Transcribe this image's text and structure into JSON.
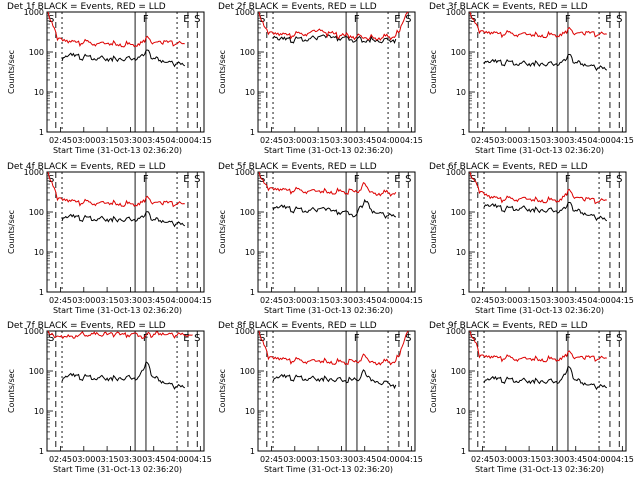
{
  "figure": {
    "ylabel": "Counts/sec",
    "xlabel": "Start Time (31-Oct-13 02:36:20)",
    "xticks": [
      "02:45",
      "03:00",
      "03:15",
      "03:30",
      "03:45",
      "04:00",
      "04:15"
    ],
    "yticks": [
      "1",
      "10",
      "100",
      "1000"
    ],
    "event_markers": [
      "S",
      "F",
      "E",
      "S"
    ],
    "colors": {
      "events": "#000000",
      "lld": "#dd0000"
    }
  },
  "chart_data": [
    {
      "type": "line",
      "title": "Det 1f  BLACK = Events, RED = LLD",
      "xlabel": "Start Time (31-Oct-13 02:36:20)",
      "ylabel": "Counts/sec",
      "yscale": "log",
      "ylim": [
        1,
        1000
      ],
      "series": [
        {
          "name": "Events",
          "color": "#000000",
          "x": [
            "02:46",
            "02:50",
            "03:00",
            "03:10",
            "03:20",
            "03:30",
            "03:35",
            "03:40",
            "03:45",
            "03:50",
            "04:00",
            "04:05"
          ],
          "values": [
            60,
            80,
            75,
            70,
            72,
            68,
            75,
            110,
            70,
            55,
            50,
            45
          ]
        },
        {
          "name": "LLD",
          "color": "#dd0000",
          "x": [
            "02:37",
            "02:41",
            "02:43",
            "02:50",
            "03:00",
            "03:10",
            "03:20",
            "03:30",
            "03:35",
            "03:40",
            "03:45",
            "03:50",
            "04:00",
            "04:05"
          ],
          "values": [
            1000,
            400,
            200,
            170,
            175,
            165,
            170,
            155,
            160,
            230,
            170,
            165,
            160,
            160
          ]
        }
      ]
    },
    {
      "type": "line",
      "title": "Det 2f  BLACK = Events, RED = LLD",
      "xlabel": "Start Time (31-Oct-13 02:36:20)",
      "ylabel": "Counts/sec",
      "yscale": "log",
      "ylim": [
        1,
        1000
      ],
      "series": [
        {
          "name": "Events",
          "color": "#000000",
          "x": [
            "02:46",
            "02:50",
            "03:00",
            "03:10",
            "03:15",
            "03:20",
            "03:30",
            "03:40",
            "03:50",
            "04:00",
            "04:05"
          ],
          "values": [
            220,
            200,
            205,
            215,
            240,
            230,
            215,
            210,
            205,
            200,
            210
          ]
        },
        {
          "name": "LLD",
          "color": "#dd0000",
          "x": [
            "02:37",
            "02:41",
            "02:43",
            "02:50",
            "03:00",
            "03:10",
            "03:15",
            "03:20",
            "03:30",
            "03:40",
            "03:50",
            "04:00",
            "04:05",
            "04:10",
            "04:13"
          ],
          "values": [
            1000,
            400,
            280,
            260,
            270,
            310,
            350,
            300,
            260,
            250,
            240,
            240,
            260,
            600,
            1000
          ]
        }
      ]
    },
    {
      "type": "line",
      "title": "Det 3f  BLACK = Events, RED = LLD",
      "xlabel": "Start Time (31-Oct-13 02:36:20)",
      "ylabel": "Counts/sec",
      "yscale": "log",
      "ylim": [
        1,
        1000
      ],
      "series": [
        {
          "name": "Events",
          "color": "#000000",
          "x": [
            "02:46",
            "02:50",
            "03:00",
            "03:10",
            "03:20",
            "03:30",
            "03:35",
            "03:40",
            "03:45",
            "03:50",
            "04:00",
            "04:05"
          ],
          "values": [
            50,
            55,
            55,
            52,
            55,
            50,
            55,
            85,
            55,
            45,
            40,
            35
          ]
        },
        {
          "name": "LLD",
          "color": "#dd0000",
          "x": [
            "02:37",
            "02:41",
            "02:43",
            "02:50",
            "03:00",
            "03:10",
            "03:20",
            "03:30",
            "03:35",
            "03:40",
            "03:45",
            "03:50",
            "04:00",
            "04:05"
          ],
          "values": [
            1000,
            500,
            300,
            280,
            290,
            285,
            280,
            270,
            280,
            380,
            290,
            280,
            270,
            280
          ]
        }
      ]
    },
    {
      "type": "line",
      "title": "Det 4f  BLACK = Events, RED = LLD",
      "xlabel": "Start Time (31-Oct-13 02:36:20)",
      "ylabel": "Counts/sec",
      "yscale": "log",
      "ylim": [
        1,
        1000
      ],
      "series": [
        {
          "name": "Events",
          "color": "#000000",
          "x": [
            "02:46",
            "02:50",
            "03:00",
            "03:10",
            "03:20",
            "03:30",
            "03:35",
            "03:40",
            "03:45",
            "03:50",
            "04:00",
            "04:05"
          ],
          "values": [
            60,
            75,
            70,
            68,
            70,
            65,
            70,
            100,
            65,
            55,
            50,
            45
          ]
        },
        {
          "name": "LLD",
          "color": "#dd0000",
          "x": [
            "02:37",
            "02:41",
            "02:43",
            "02:50",
            "03:00",
            "03:10",
            "03:20",
            "03:30",
            "03:35",
            "03:40",
            "03:45",
            "03:50",
            "04:00",
            "04:05"
          ],
          "values": [
            1000,
            400,
            200,
            180,
            175,
            170,
            175,
            160,
            165,
            230,
            170,
            160,
            155,
            160
          ]
        }
      ]
    },
    {
      "type": "line",
      "title": "Det 5f  BLACK = Events, RED = LLD",
      "xlabel": "Start Time (31-Oct-13 02:36:20)",
      "ylabel": "Counts/sec",
      "yscale": "log",
      "ylim": [
        1,
        1000
      ],
      "series": [
        {
          "name": "Events",
          "color": "#000000",
          "x": [
            "02:46",
            "02:50",
            "03:00",
            "03:10",
            "03:15",
            "03:20",
            "03:30",
            "03:40",
            "03:45",
            "03:50",
            "04:00",
            "04:05"
          ],
          "values": [
            110,
            130,
            115,
            110,
            120,
            110,
            95,
            90,
            200,
            95,
            80,
            75
          ]
        },
        {
          "name": "LLD",
          "color": "#dd0000",
          "x": [
            "02:37",
            "02:41",
            "02:43",
            "02:50",
            "03:00",
            "03:10",
            "03:20",
            "03:30",
            "03:40",
            "03:45",
            "03:50",
            "04:00",
            "04:05"
          ],
          "values": [
            1000,
            500,
            350,
            340,
            350,
            340,
            345,
            330,
            310,
            520,
            320,
            300,
            310
          ]
        }
      ]
    },
    {
      "type": "line",
      "title": "Det 6f  BLACK = Events, RED = LLD",
      "xlabel": "Start Time (31-Oct-13 02:36:20)",
      "ylabel": "Counts/sec",
      "yscale": "log",
      "ylim": [
        1,
        1000
      ],
      "series": [
        {
          "name": "Events",
          "color": "#000000",
          "x": [
            "02:46",
            "02:50",
            "03:00",
            "03:10",
            "03:20",
            "03:30",
            "03:35",
            "03:40",
            "03:45",
            "03:50",
            "04:00",
            "04:05"
          ],
          "values": [
            130,
            140,
            120,
            125,
            120,
            110,
            110,
            170,
            110,
            85,
            70,
            60
          ]
        },
        {
          "name": "LLD",
          "color": "#dd0000",
          "x": [
            "02:37",
            "02:40",
            "02:43",
            "02:50",
            "03:00",
            "03:10",
            "03:20",
            "03:30",
            "03:35",
            "03:40",
            "03:45",
            "03:50",
            "04:00",
            "04:05"
          ],
          "values": [
            1000,
            600,
            300,
            220,
            210,
            220,
            210,
            200,
            210,
            350,
            230,
            200,
            180,
            200
          ]
        }
      ]
    },
    {
      "type": "line",
      "title": "Det 7f  BLACK = Events, RED = LLD",
      "xlabel": "Start Time (31-Oct-13 02:36:20)",
      "ylabel": "Counts/sec",
      "yscale": "log",
      "ylim": [
        1,
        1000
      ],
      "series": [
        {
          "name": "Events",
          "color": "#000000",
          "x": [
            "02:46",
            "02:50",
            "03:00",
            "03:10",
            "03:20",
            "03:30",
            "03:35",
            "03:40",
            "03:45",
            "03:50",
            "04:00",
            "04:05"
          ],
          "values": [
            55,
            75,
            70,
            68,
            70,
            68,
            70,
            170,
            70,
            50,
            40,
            38
          ]
        },
        {
          "name": "LLD",
          "color": "#dd0000",
          "x": [
            "02:37",
            "02:43",
            "02:50",
            "03:00",
            "03:10",
            "03:20",
            "03:30",
            "03:40",
            "03:45",
            "03:50",
            "04:00",
            "04:10"
          ],
          "values": [
            1000,
            750,
            800,
            820,
            780,
            800,
            790,
            780,
            830,
            790,
            780,
            800
          ]
        }
      ]
    },
    {
      "type": "line",
      "title": "Det 8f  BLACK = Events, RED = LLD",
      "xlabel": "Start Time (31-Oct-13 02:36:20)",
      "ylabel": "Counts/sec",
      "yscale": "log",
      "ylim": [
        1,
        1000
      ],
      "series": [
        {
          "name": "Events",
          "color": "#000000",
          "x": [
            "02:46",
            "02:50",
            "03:00",
            "03:10",
            "03:20",
            "03:30",
            "03:40",
            "03:45",
            "03:50",
            "04:00",
            "04:05"
          ],
          "values": [
            55,
            70,
            68,
            65,
            68,
            60,
            58,
            100,
            60,
            50,
            45
          ]
        },
        {
          "name": "LLD",
          "color": "#dd0000",
          "x": [
            "02:37",
            "02:41",
            "02:43",
            "02:50",
            "03:00",
            "03:10",
            "03:20",
            "03:30",
            "03:40",
            "03:45",
            "03:50",
            "04:00",
            "04:05",
            "04:10",
            "04:13"
          ],
          "values": [
            1000,
            400,
            200,
            190,
            185,
            180,
            185,
            170,
            165,
            250,
            175,
            170,
            180,
            500,
            1000
          ]
        }
      ]
    },
    {
      "type": "line",
      "title": "Det 9f  BLACK = Events, RED = LLD",
      "xlabel": "Start Time (31-Oct-13 02:36:20)",
      "ylabel": "Counts/sec",
      "yscale": "log",
      "ylim": [
        1,
        1000
      ],
      "series": [
        {
          "name": "Events",
          "color": "#000000",
          "x": [
            "02:46",
            "02:50",
            "03:00",
            "03:10",
            "03:20",
            "03:30",
            "03:35",
            "03:40",
            "03:45",
            "03:50",
            "04:00",
            "04:05"
          ],
          "values": [
            50,
            62,
            60,
            58,
            60,
            55,
            58,
            130,
            60,
            45,
            40,
            38
          ]
        },
        {
          "name": "LLD",
          "color": "#dd0000",
          "x": [
            "02:37",
            "02:41",
            "02:43",
            "02:50",
            "03:00",
            "03:10",
            "03:20",
            "03:30",
            "03:35",
            "03:40",
            "03:45",
            "03:50",
            "04:00",
            "04:05"
          ],
          "values": [
            1000,
            500,
            220,
            210,
            215,
            205,
            210,
            200,
            210,
            300,
            215,
            205,
            200,
            210
          ]
        }
      ]
    }
  ]
}
